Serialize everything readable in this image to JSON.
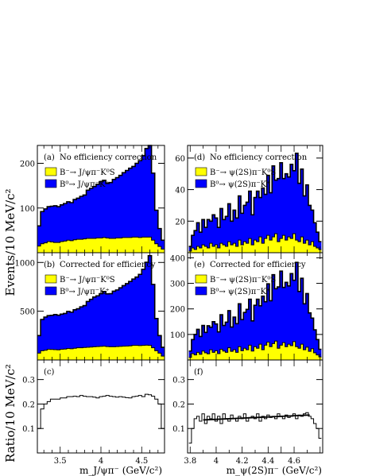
{
  "y_axis_labels": {
    "top": "Events/10 MeV/c²",
    "bottom": "Ratio/10 MeV/c²"
  },
  "x_axis_labels": {
    "left": "m_J/ψπ⁻ (GeV/c²)",
    "right": "m_ψ(2S)π⁻ (GeV/c²)"
  },
  "colors": {
    "yellow": "#ffff00",
    "blue": "#0000ff",
    "line": "#000000"
  },
  "chart_data": [
    {
      "id": "a",
      "type": "area",
      "stacked": true,
      "panel_label": "(a)",
      "title": "No efficiency correction",
      "xlim": [
        3.22,
        4.78
      ],
      "ylim": [
        0,
        240
      ],
      "yticks": [
        "100",
        "200"
      ],
      "ytick_values": [
        100,
        200
      ],
      "legend": [
        {
          "label": "B⁻→ J/ψπ⁻K⁰S",
          "color": "#ffff00"
        },
        {
          "label": "B⁰→ J/ψπ⁻K⁺",
          "color": "#0000ff"
        }
      ],
      "x": [
        3.24,
        3.28,
        3.32,
        3.36,
        3.4,
        3.44,
        3.48,
        3.52,
        3.56,
        3.6,
        3.64,
        3.68,
        3.72,
        3.76,
        3.8,
        3.84,
        3.88,
        3.92,
        3.96,
        4.0,
        4.04,
        4.08,
        4.12,
        4.16,
        4.2,
        4.24,
        4.28,
        4.32,
        4.36,
        4.4,
        4.44,
        4.48,
        4.52,
        4.56,
        4.6,
        4.64,
        4.68,
        4.72,
        4.76
      ],
      "series": [
        {
          "name": "B⁻→ J/ψπ⁻K⁰S",
          "values": [
            15,
            20,
            22,
            25,
            24,
            23,
            23,
            25,
            26,
            28,
            27,
            29,
            30,
            30,
            31,
            32,
            32,
            32,
            33,
            33,
            34,
            33,
            32,
            32,
            33,
            33,
            34,
            34,
            34,
            35,
            35,
            34,
            35,
            35,
            35,
            28,
            20,
            14,
            8
          ]
        },
        {
          "name": "B⁰→ J/ψπ⁻K⁺",
          "values": [
            45,
            72,
            76,
            78,
            80,
            82,
            80,
            82,
            84,
            86,
            85,
            90,
            92,
            96,
            98,
            108,
            112,
            116,
            120,
            126,
            128,
            122,
            125,
            132,
            135,
            140,
            145,
            150,
            155,
            158,
            165,
            172,
            182,
            198,
            215,
            150,
            75,
            40,
            20
          ]
        }
      ]
    },
    {
      "id": "b",
      "type": "area",
      "stacked": true,
      "panel_label": "(b)",
      "title": "Corrected for efficiency",
      "xlim": [
        3.22,
        4.78
      ],
      "ylim": [
        0,
        1100
      ],
      "yticks": [
        "500",
        "1000"
      ],
      "ytick_values": [
        500,
        1000
      ],
      "legend": [
        {
          "label": "B⁻→ J/ψπ⁻K⁰S",
          "color": "#ffff00"
        },
        {
          "label": "B⁰→ J/ψπ⁻K⁺",
          "color": "#0000ff"
        }
      ],
      "x": [
        3.24,
        3.28,
        3.32,
        3.36,
        3.4,
        3.44,
        3.48,
        3.52,
        3.56,
        3.6,
        3.64,
        3.68,
        3.72,
        3.76,
        3.8,
        3.84,
        3.88,
        3.92,
        3.96,
        4.0,
        4.04,
        4.08,
        4.12,
        4.16,
        4.2,
        4.24,
        4.28,
        4.32,
        4.36,
        4.4,
        4.44,
        4.48,
        4.52,
        4.56,
        4.6,
        4.64,
        4.68,
        4.72,
        4.76
      ],
      "series": [
        {
          "name": "B⁻→ J/ψπ⁻K⁰S",
          "values": [
            70,
            95,
            100,
            110,
            108,
            106,
            104,
            110,
            112,
            118,
            115,
            120,
            125,
            125,
            128,
            130,
            132,
            135,
            138,
            140,
            142,
            138,
            135,
            135,
            138,
            140,
            142,
            143,
            145,
            150,
            150,
            148,
            150,
            152,
            150,
            125,
            95,
            70,
            40
          ]
        },
        {
          "name": "B⁰→ J/ψπ⁻K⁺",
          "values": [
            180,
            320,
            340,
            345,
            350,
            360,
            355,
            360,
            365,
            380,
            375,
            395,
            400,
            420,
            430,
            470,
            490,
            510,
            520,
            540,
            560,
            540,
            545,
            570,
            580,
            600,
            620,
            640,
            660,
            680,
            700,
            730,
            780,
            850,
            920,
            650,
            330,
            180,
            90
          ]
        }
      ]
    },
    {
      "id": "c",
      "type": "line",
      "panel_label": "(c)",
      "title": "",
      "xlim": [
        3.22,
        4.78
      ],
      "ylim": [
        0,
        0.38
      ],
      "yticks": [
        "0.1",
        "0.2",
        "0.3"
      ],
      "ytick_values": [
        0.1,
        0.2,
        0.3
      ],
      "xticks": [
        "3.5",
        "4",
        "4.5"
      ],
      "xtick_values": [
        3.5,
        4.0,
        4.5
      ],
      "x": [
        3.24,
        3.28,
        3.32,
        3.36,
        3.4,
        3.44,
        3.48,
        3.52,
        3.56,
        3.6,
        3.64,
        3.68,
        3.72,
        3.76,
        3.8,
        3.84,
        3.88,
        3.92,
        3.96,
        4.0,
        4.04,
        4.08,
        4.12,
        4.16,
        4.2,
        4.24,
        4.28,
        4.32,
        4.36,
        4.4,
        4.44,
        4.48,
        4.52,
        4.56,
        4.6,
        4.64,
        4.68,
        4.72,
        4.76
      ],
      "series": [
        {
          "name": "",
          "values": [
            0.1,
            0.18,
            0.2,
            0.21,
            0.22,
            0.22,
            0.22,
            0.225,
            0.225,
            0.23,
            0.23,
            0.232,
            0.23,
            0.235,
            0.232,
            0.23,
            0.23,
            0.228,
            0.225,
            0.23,
            0.232,
            0.235,
            0.232,
            0.23,
            0.228,
            0.23,
            0.228,
            0.226,
            0.225,
            0.23,
            0.232,
            0.235,
            0.23,
            0.24,
            0.238,
            0.232,
            0.22,
            0.2,
            0.1
          ]
        }
      ]
    },
    {
      "id": "d",
      "type": "area",
      "stacked": true,
      "panel_label": "(d)",
      "title": "No efficiency correction",
      "xlim": [
        3.78,
        4.82
      ],
      "ylim": [
        0,
        68
      ],
      "yticks": [
        "20",
        "40",
        "60"
      ],
      "ytick_values": [
        20,
        40,
        60
      ],
      "legend": [
        {
          "label": "B⁻→ ψ(2S)π⁻K⁰S",
          "color": "#ffff00"
        },
        {
          "label": "B⁰→ ψ(2S)π⁻K⁺",
          "color": "#0000ff"
        }
      ],
      "x": [
        3.8,
        3.82,
        3.84,
        3.86,
        3.88,
        3.9,
        3.92,
        3.94,
        3.96,
        3.98,
        4.0,
        4.02,
        4.04,
        4.06,
        4.08,
        4.1,
        4.12,
        4.14,
        4.16,
        4.18,
        4.2,
        4.22,
        4.24,
        4.26,
        4.28,
        4.3,
        4.32,
        4.34,
        4.36,
        4.38,
        4.4,
        4.42,
        4.44,
        4.46,
        4.48,
        4.5,
        4.52,
        4.54,
        4.56,
        4.58,
        4.6,
        4.62,
        4.64,
        4.66,
        4.68,
        4.7,
        4.72,
        4.74,
        4.76,
        4.78,
        4.8
      ],
      "series": [
        {
          "name": "B⁻→ ψ(2S)π⁻K⁰S",
          "values": [
            1,
            3,
            2,
            4,
            3,
            5,
            4,
            3,
            6,
            4,
            5,
            3,
            6,
            5,
            4,
            7,
            5,
            6,
            4,
            8,
            5,
            7,
            6,
            9,
            5,
            8,
            7,
            10,
            6,
            9,
            11,
            8,
            10,
            12,
            7,
            9,
            11,
            8,
            10,
            9,
            12,
            8,
            7,
            10,
            6,
            8,
            5,
            7,
            4,
            3,
            2
          ]
        },
        {
          "name": "B⁰→ ψ(2S)π⁻K⁺",
          "values": [
            3,
            8,
            12,
            15,
            10,
            16,
            12,
            18,
            14,
            20,
            17,
            13,
            22,
            16,
            19,
            24,
            15,
            21,
            18,
            28,
            20,
            23,
            26,
            30,
            19,
            27,
            32,
            25,
            35,
            28,
            38,
            30,
            45,
            34,
            40,
            48,
            36,
            42,
            38,
            47,
            40,
            55,
            37,
            43,
            30,
            35,
            25,
            20,
            15,
            10,
            5
          ]
        }
      ]
    },
    {
      "id": "e",
      "type": "area",
      "stacked": true,
      "panel_label": "(e)",
      "title": "Corrected for efficiency",
      "xlim": [
        3.78,
        4.82
      ],
      "ylim": [
        0,
        420
      ],
      "yticks": [
        "100",
        "200",
        "300",
        "400"
      ],
      "ytick_values": [
        100,
        200,
        300,
        400
      ],
      "legend": [
        {
          "label": "B⁻→ ψ(2S)π⁻K⁰S",
          "color": "#ffff00"
        },
        {
          "label": "B⁰→ ψ(2S)π⁻K⁺",
          "color": "#0000ff"
        }
      ],
      "x": [
        3.8,
        3.82,
        3.84,
        3.86,
        3.88,
        3.9,
        3.92,
        3.94,
        3.96,
        3.98,
        4.0,
        4.02,
        4.04,
        4.06,
        4.08,
        4.1,
        4.12,
        4.14,
        4.16,
        4.18,
        4.2,
        4.22,
        4.24,
        4.26,
        4.28,
        4.3,
        4.32,
        4.34,
        4.36,
        4.38,
        4.4,
        4.42,
        4.44,
        4.46,
        4.48,
        4.5,
        4.52,
        4.54,
        4.56,
        4.58,
        4.6,
        4.62,
        4.64,
        4.66,
        4.68,
        4.7,
        4.72,
        4.74,
        4.76,
        4.78,
        4.8
      ],
      "series": [
        {
          "name": "B⁻→ ψ(2S)π⁻K⁰S",
          "values": [
            10,
            25,
            20,
            30,
            22,
            35,
            28,
            24,
            40,
            30,
            36,
            25,
            42,
            35,
            30,
            48,
            34,
            40,
            30,
            52,
            36,
            46,
            40,
            58,
            35,
            52,
            46,
            62,
            40,
            58,
            70,
            52,
            64,
            74,
            46,
            58,
            68,
            52,
            62,
            56,
            72,
            52,
            46,
            62,
            40,
            50,
            34,
            44,
            28,
            20,
            12
          ]
        },
        {
          "name": "B⁰→ ψ(2S)π⁻K⁺",
          "values": [
            25,
            55,
            80,
            90,
            70,
            100,
            80,
            110,
            88,
            120,
            105,
            85,
            135,
            100,
            118,
            145,
            95,
            128,
            112,
            168,
            122,
            140,
            158,
            180,
            118,
            162,
            192,
            150,
            210,
            170,
            228,
            180,
            270,
            205,
            240,
            290,
            216,
            252,
            228,
            282,
            240,
            330,
            222,
            258,
            180,
            210,
            150,
            120,
            90,
            60,
            30
          ]
        }
      ]
    },
    {
      "id": "f",
      "type": "line",
      "panel_label": "(f)",
      "title": "",
      "xlim": [
        3.78,
        4.82
      ],
      "ylim": [
        0,
        0.38
      ],
      "yticks": [
        "0.1",
        "0.2",
        "0.3"
      ],
      "ytick_values": [
        0.1,
        0.2,
        0.3
      ],
      "xticks": [
        "3.8",
        "4",
        "4.2",
        "4.4",
        "4.6"
      ],
      "xtick_values": [
        3.8,
        4.0,
        4.2,
        4.4,
        4.6
      ],
      "fit_line": [
        [
          3.9,
          0.135
        ],
        [
          4.72,
          0.155
        ]
      ],
      "x": [
        3.8,
        3.82,
        3.84,
        3.86,
        3.88,
        3.9,
        3.92,
        3.94,
        3.96,
        3.98,
        4.0,
        4.02,
        4.04,
        4.06,
        4.08,
        4.1,
        4.12,
        4.14,
        4.16,
        4.18,
        4.2,
        4.22,
        4.24,
        4.26,
        4.28,
        4.3,
        4.32,
        4.34,
        4.36,
        4.38,
        4.4,
        4.42,
        4.44,
        4.46,
        4.48,
        4.5,
        4.52,
        4.54,
        4.56,
        4.58,
        4.6,
        4.62,
        4.64,
        4.66,
        4.68,
        4.7,
        4.72,
        4.74,
        4.76,
        4.78,
        4.8
      ],
      "series": [
        {
          "name": "",
          "values": [
            0.04,
            0.1,
            0.14,
            0.15,
            0.13,
            0.16,
            0.12,
            0.15,
            0.14,
            0.16,
            0.13,
            0.15,
            0.12,
            0.16,
            0.14,
            0.13,
            0.155,
            0.14,
            0.13,
            0.15,
            0.14,
            0.16,
            0.13,
            0.145,
            0.15,
            0.14,
            0.16,
            0.13,
            0.15,
            0.14,
            0.155,
            0.145,
            0.15,
            0.14,
            0.16,
            0.15,
            0.14,
            0.155,
            0.145,
            0.15,
            0.16,
            0.14,
            0.155,
            0.15,
            0.16,
            0.165,
            0.15,
            0.14,
            0.12,
            0.1,
            0.06
          ]
        }
      ]
    }
  ]
}
